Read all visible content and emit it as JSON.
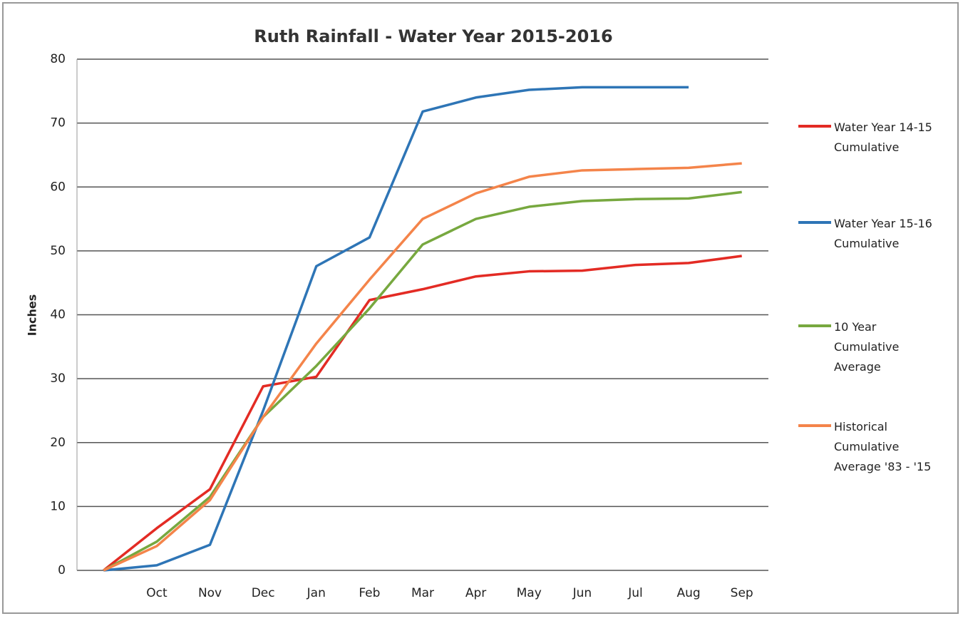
{
  "chart_data": {
    "type": "line",
    "title": "Ruth Rainfall - Water Year 2015-2016",
    "y_label": "Inches",
    "categories": [
      null,
      "Oct",
      "Nov",
      "Dec",
      "Jan",
      "Feb",
      "Mar",
      "Apr",
      "May",
      "Jun",
      "Jul",
      "Aug",
      "Sep"
    ],
    "series": [
      {
        "name": "Water Year 14-15 Cumulative",
        "color": "#e32b24",
        "values": [
          0,
          6.6,
          12.7,
          28.8,
          30.3,
          42.3,
          44,
          46,
          46.8,
          46.9,
          47.8,
          48.1,
          49.2
        ]
      },
      {
        "name": "Water Year 15-16 Cumulative",
        "color": "#2e75b6",
        "values": [
          0,
          0.8,
          4,
          25,
          47.6,
          52.1,
          71.8,
          74,
          75.2,
          75.6,
          75.6,
          75.6,
          null
        ]
      },
      {
        "name": "10 Year Cumulative Average",
        "color": "#77a83f",
        "values": [
          0,
          4.5,
          11.5,
          24,
          32,
          41,
          51,
          55,
          56.9,
          57.8,
          58.1,
          58.2,
          59.2
        ]
      },
      {
        "name": "Historical Cumulative Average '83 - '15",
        "color": "#f4844a",
        "values": [
          0,
          3.8,
          11,
          24,
          35.5,
          45.5,
          55,
          59,
          61.6,
          62.6,
          62.8,
          63,
          63.7
        ]
      }
    ],
    "ylim": [
      0,
      80
    ],
    "yticks": [
      0,
      10,
      20,
      30,
      40,
      50,
      60,
      70,
      80
    ],
    "grid": true,
    "legend": "right"
  }
}
